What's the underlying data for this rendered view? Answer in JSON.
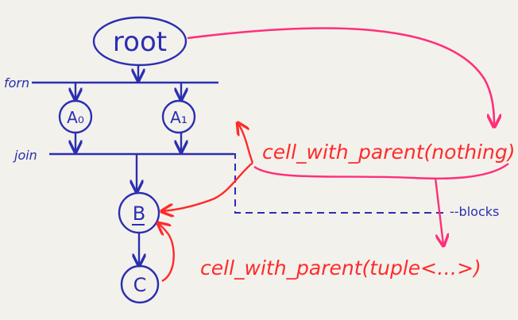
{
  "diagram": {
    "nodes": {
      "root": "root",
      "a0": "A₀",
      "a1": "A₁",
      "b": "B",
      "c": "C"
    },
    "rails": {
      "fork": "forn",
      "join": "join"
    },
    "annotations": {
      "top": "cell_with_parent(nothing)",
      "bottom": "cell_with_parent(tuple<…>)",
      "blocks": "--blocks"
    },
    "colors": {
      "ink_blue": "#2a2fb0",
      "ink_red": "#ff2a2a",
      "ink_pink": "#ff2f7a",
      "paper": "#f3f1ec"
    }
  }
}
